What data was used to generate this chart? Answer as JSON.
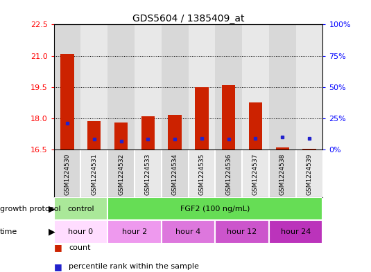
{
  "title": "GDS5604 / 1385409_at",
  "samples": [
    "GSM1224530",
    "GSM1224531",
    "GSM1224532",
    "GSM1224533",
    "GSM1224534",
    "GSM1224535",
    "GSM1224536",
    "GSM1224537",
    "GSM1224538",
    "GSM1224539"
  ],
  "bar_bottoms": [
    16.5,
    16.5,
    16.5,
    16.5,
    16.5,
    16.5,
    16.5,
    16.5,
    16.5,
    16.5
  ],
  "bar_tops": [
    21.1,
    17.85,
    17.8,
    18.1,
    18.15,
    19.5,
    19.6,
    18.75,
    16.6,
    16.55
  ],
  "percentile_values": [
    17.75,
    17.0,
    16.9,
    17.0,
    17.0,
    17.05,
    17.0,
    17.05,
    17.1,
    17.05
  ],
  "ylim_left": [
    16.5,
    22.5
  ],
  "yticks_left": [
    16.5,
    18.0,
    19.5,
    21.0,
    22.5
  ],
  "ylim_right": [
    0,
    100
  ],
  "yticks_right": [
    0,
    25,
    50,
    75,
    100
  ],
  "yticklabels_right": [
    "0%",
    "25%",
    "50%",
    "75%",
    "100%"
  ],
  "bar_color": "#cc2200",
  "percentile_color": "#2222cc",
  "background_fig": "#ffffff",
  "col_colors": [
    "#d8d8d8",
    "#e8e8e8"
  ],
  "protocol_groups": [
    {
      "label": "control",
      "start": 0,
      "end": 2,
      "color": "#aae899"
    },
    {
      "label": "FGF2 (100 ng/mL)",
      "start": 2,
      "end": 10,
      "color": "#66dd55"
    }
  ],
  "time_groups": [
    {
      "label": "hour 0",
      "start": 0,
      "end": 2,
      "color": "#ffddff"
    },
    {
      "label": "hour 2",
      "start": 2,
      "end": 4,
      "color": "#ee99ee"
    },
    {
      "label": "hour 4",
      "start": 4,
      "end": 6,
      "color": "#dd77dd"
    },
    {
      "label": "hour 12",
      "start": 6,
      "end": 8,
      "color": "#cc55cc"
    },
    {
      "label": "hour 24",
      "start": 8,
      "end": 10,
      "color": "#bb33bb"
    }
  ],
  "row_label_protocol": "growth protocol",
  "row_label_time": "time",
  "legend_count": "count",
  "legend_percentile": "percentile rank within the sample",
  "bar_width": 0.5
}
